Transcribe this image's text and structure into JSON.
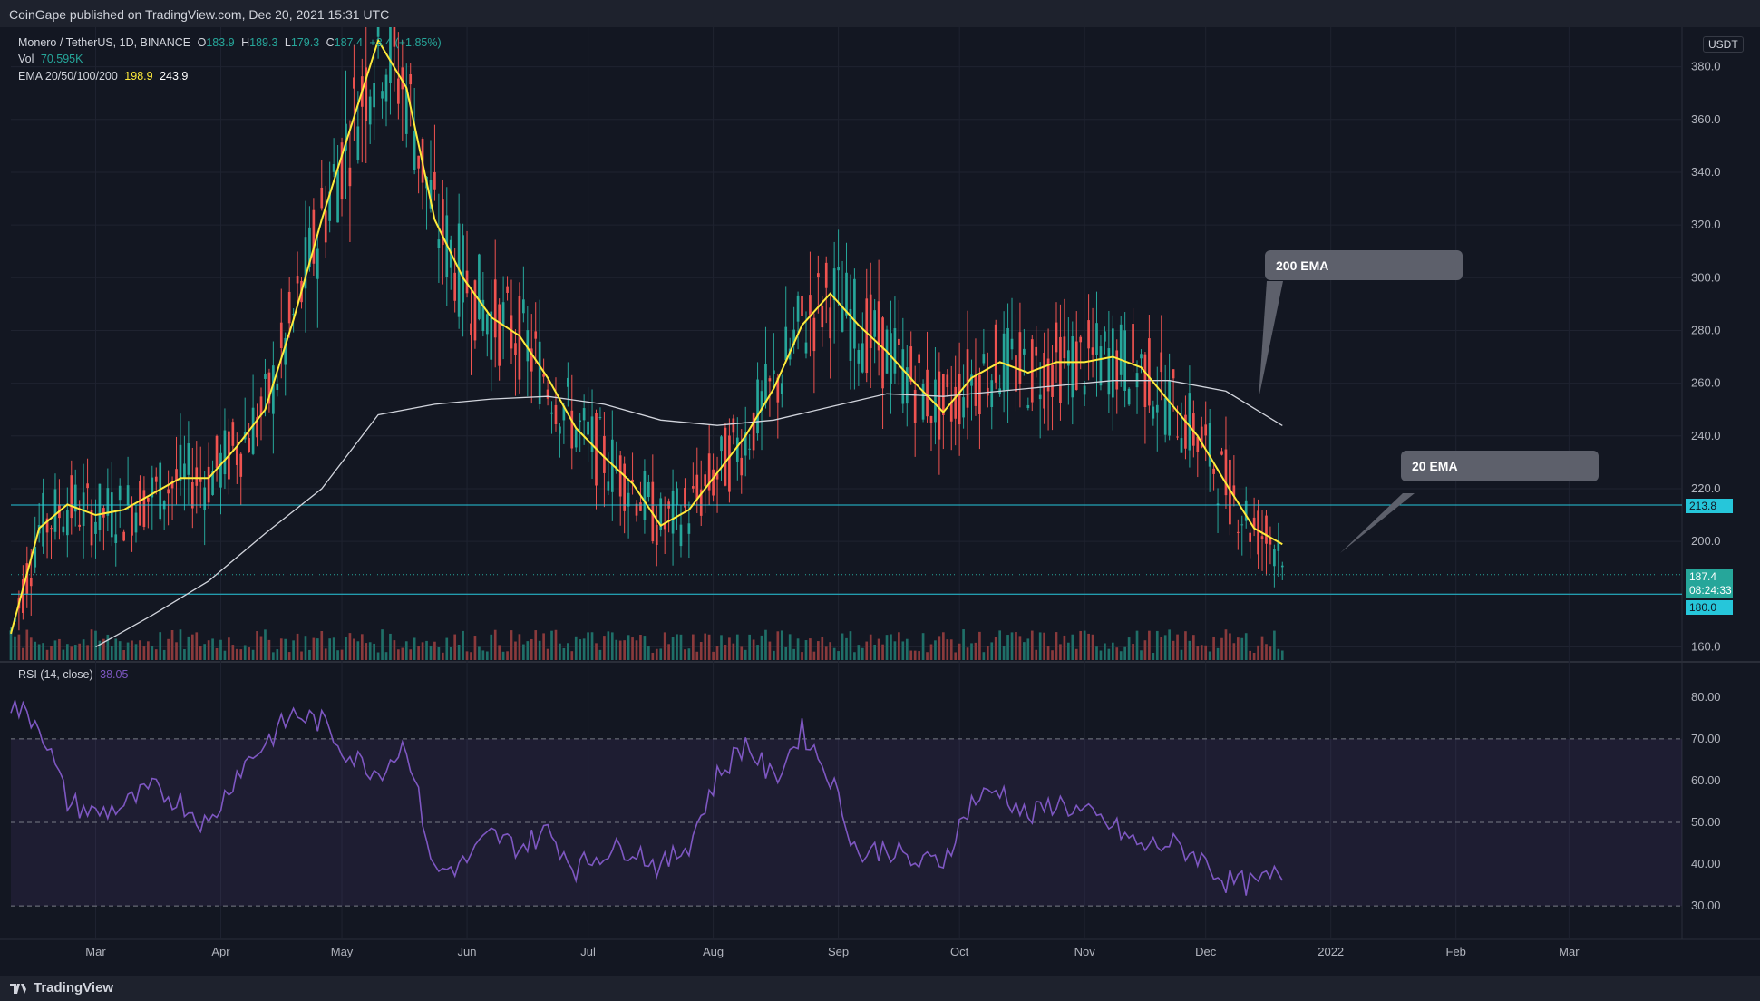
{
  "header": {
    "published": "CoinGape published on TradingView.com, Dec 20, 2021 15:31 UTC"
  },
  "legend": {
    "symbol": "Monero / TetherUS, 1D, BINANCE",
    "o_label": "O",
    "o_value": "183.9",
    "h_label": "H",
    "h_value": "189.3",
    "l_label": "L",
    "l_value": "179.3",
    "c_label": "C",
    "c_value": "187.4",
    "change": "+3.4 (+1.85%)",
    "vol_label": "Vol",
    "vol_value": "70.595K",
    "ema_label": "EMA 20/50/100/200",
    "ema20_value": "198.9",
    "ema200_value": "243.9",
    "rsi_label": "RSI (14, close)",
    "rsi_value": "38.05"
  },
  "currency": "USDT",
  "callouts": {
    "ema200": "200 EMA",
    "ema20": "20 EMA"
  },
  "price_tags": {
    "resistance": "213.8",
    "last": "187.4",
    "countdown": "08:24:33",
    "support": "180.0"
  },
  "footer": {
    "brand": "TradingView"
  },
  "colors": {
    "background": "#131722",
    "up": "#26a69a",
    "down": "#ef5350",
    "ema20": "#ffeb3b",
    "ema200": "#d1d4dc",
    "rsi": "#7e57c2",
    "level": "#26c6da"
  },
  "chart_data": {
    "type": "candlestick",
    "price_axis": {
      "ticks": [
        160,
        180,
        200,
        220,
        240,
        260,
        280,
        300,
        320,
        340,
        360,
        380
      ],
      "labels": [
        "160.0",
        "180.0",
        "200.0",
        "220.0",
        "240.0",
        "260.0",
        "280.0",
        "300.0",
        "320.0",
        "340.0",
        "360.0",
        "380.0"
      ],
      "range": [
        155,
        395
      ]
    },
    "time_axis": {
      "labels": [
        "Mar",
        "Apr",
        "May",
        "Jun",
        "Jul",
        "Aug",
        "Sep",
        "Oct",
        "Nov",
        "Dec",
        "2022",
        "Feb",
        "Mar"
      ]
    },
    "horizontal_levels": [
      213.8,
      180.0
    ],
    "ema20": [
      [
        "2021-02-08",
        165
      ],
      [
        "2021-02-15",
        205
      ],
      [
        "2021-02-22",
        214
      ],
      [
        "2021-03-01",
        210
      ],
      [
        "2021-03-08",
        212
      ],
      [
        "2021-03-15",
        218
      ],
      [
        "2021-03-22",
        224
      ],
      [
        "2021-03-29",
        224
      ],
      [
        "2021-04-05",
        236
      ],
      [
        "2021-04-12",
        250
      ],
      [
        "2021-04-19",
        284
      ],
      [
        "2021-04-26",
        322
      ],
      [
        "2021-05-03",
        356
      ],
      [
        "2021-05-10",
        390
      ],
      [
        "2021-05-17",
        372
      ],
      [
        "2021-05-24",
        322
      ],
      [
        "2021-05-31",
        300
      ],
      [
        "2021-06-07",
        285
      ],
      [
        "2021-06-14",
        278
      ],
      [
        "2021-06-21",
        262
      ],
      [
        "2021-06-28",
        243
      ],
      [
        "2021-07-05",
        232
      ],
      [
        "2021-07-12",
        222
      ],
      [
        "2021-07-19",
        206
      ],
      [
        "2021-07-26",
        212
      ],
      [
        "2021-08-02",
        226
      ],
      [
        "2021-08-09",
        240
      ],
      [
        "2021-08-16",
        258
      ],
      [
        "2021-08-23",
        282
      ],
      [
        "2021-08-30",
        294
      ],
      [
        "2021-09-06",
        282
      ],
      [
        "2021-09-13",
        272
      ],
      [
        "2021-09-20",
        260
      ],
      [
        "2021-09-27",
        249
      ],
      [
        "2021-10-04",
        262
      ],
      [
        "2021-10-11",
        268
      ],
      [
        "2021-10-18",
        264
      ],
      [
        "2021-10-25",
        268
      ],
      [
        "2021-11-01",
        268
      ],
      [
        "2021-11-08",
        270
      ],
      [
        "2021-11-15",
        266
      ],
      [
        "2021-11-22",
        253
      ],
      [
        "2021-11-29",
        240
      ],
      [
        "2021-12-06",
        222
      ],
      [
        "2021-12-13",
        205
      ],
      [
        "2021-12-20",
        198.9
      ]
    ],
    "ema200": [
      [
        "2021-03-01",
        160
      ],
      [
        "2021-03-15",
        172
      ],
      [
        "2021-03-29",
        185
      ],
      [
        "2021-04-12",
        203
      ],
      [
        "2021-04-26",
        220
      ],
      [
        "2021-05-10",
        248
      ],
      [
        "2021-05-24",
        252
      ],
      [
        "2021-06-07",
        254
      ],
      [
        "2021-06-21",
        255
      ],
      [
        "2021-07-05",
        252
      ],
      [
        "2021-07-19",
        246
      ],
      [
        "2021-08-02",
        244
      ],
      [
        "2021-08-16",
        246
      ],
      [
        "2021-08-30",
        251
      ],
      [
        "2021-09-13",
        256
      ],
      [
        "2021-09-27",
        255
      ],
      [
        "2021-10-11",
        257
      ],
      [
        "2021-10-25",
        259
      ],
      [
        "2021-11-08",
        261
      ],
      [
        "2021-11-22",
        261
      ],
      [
        "2021-12-06",
        257
      ],
      [
        "2021-12-20",
        243.9
      ]
    ],
    "rsi": {
      "axis_labels": [
        "30.00",
        "40.00",
        "50.00",
        "60.00",
        "70.00",
        "80.00"
      ],
      "ticks": [
        30,
        40,
        50,
        60,
        70,
        80
      ],
      "band": [
        30,
        70
      ],
      "midline": 50,
      "range": [
        22,
        88
      ],
      "values": [
        [
          "2021-02-08",
          78
        ],
        [
          "2021-02-15",
          74
        ],
        [
          "2021-02-22",
          55
        ],
        [
          "2021-03-01",
          52
        ],
        [
          "2021-03-08",
          54
        ],
        [
          "2021-03-15",
          58
        ],
        [
          "2021-03-22",
          55
        ],
        [
          "2021-03-29",
          49
        ],
        [
          "2021-04-05",
          62
        ],
        [
          "2021-04-12",
          69
        ],
        [
          "2021-04-19",
          76
        ],
        [
          "2021-04-26",
          74
        ],
        [
          "2021-05-03",
          66
        ],
        [
          "2021-05-10",
          62
        ],
        [
          "2021-05-17",
          69
        ],
        [
          "2021-05-24",
          38
        ],
        [
          "2021-05-31",
          40
        ],
        [
          "2021-06-07",
          47
        ],
        [
          "2021-06-14",
          44
        ],
        [
          "2021-06-21",
          48
        ],
        [
          "2021-06-28",
          39
        ],
        [
          "2021-07-05",
          43
        ],
        [
          "2021-07-12",
          44
        ],
        [
          "2021-07-19",
          39
        ],
        [
          "2021-07-26",
          45
        ],
        [
          "2021-08-02",
          61
        ],
        [
          "2021-08-09",
          69
        ],
        [
          "2021-08-16",
          60
        ],
        [
          "2021-08-23",
          72
        ],
        [
          "2021-08-30",
          61
        ],
        [
          "2021-09-06",
          42
        ],
        [
          "2021-09-13",
          44
        ],
        [
          "2021-09-20",
          40
        ],
        [
          "2021-09-27",
          41
        ],
        [
          "2021-10-04",
          55
        ],
        [
          "2021-10-11",
          58
        ],
        [
          "2021-10-18",
          51
        ],
        [
          "2021-10-25",
          55
        ],
        [
          "2021-11-01",
          52
        ],
        [
          "2021-11-08",
          49
        ],
        [
          "2021-11-15",
          44
        ],
        [
          "2021-11-22",
          45
        ],
        [
          "2021-11-29",
          42
        ],
        [
          "2021-12-06",
          36
        ],
        [
          "2021-12-13",
          35
        ],
        [
          "2021-12-20",
          38.05
        ]
      ]
    }
  }
}
